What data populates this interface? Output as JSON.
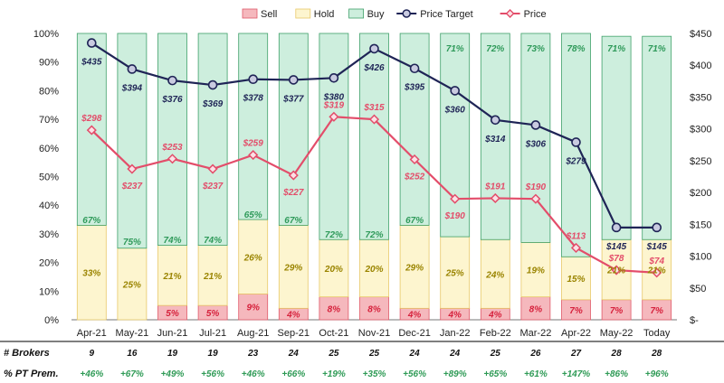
{
  "chart_data": {
    "type": "bar",
    "categories": [
      "Apr-21",
      "May-21",
      "Jun-21",
      "Jul-21",
      "Aug-21",
      "Sep-21",
      "Oct-21",
      "Nov-21",
      "Dec-21",
      "Jan-22",
      "Feb-22",
      "Mar-22",
      "Apr-22",
      "May-22",
      "Today"
    ],
    "series": [
      {
        "name": "Sell",
        "type": "stacked-bar",
        "color": "#f5b8bd",
        "edge": "#e05a6a",
        "label_color": "#d6213c",
        "values": [
          0,
          0,
          5,
          5,
          9,
          4,
          8,
          8,
          4,
          4,
          4,
          8,
          7,
          7,
          7
        ],
        "labels": [
          "",
          "",
          "5%",
          "5%",
          "9%",
          "4%",
          "8%",
          "8%",
          "4%",
          "4%",
          "4%",
          "8%",
          "7%",
          "7%",
          "7%"
        ]
      },
      {
        "name": "Hold",
        "type": "stacked-bar",
        "color": "#fdf5cf",
        "edge": "#e8c96a",
        "label_color": "#9a8400",
        "values": [
          33,
          25,
          21,
          21,
          26,
          29,
          20,
          20,
          29,
          25,
          24,
          19,
          15,
          21,
          21
        ],
        "labels": [
          "33%",
          "25%",
          "21%",
          "21%",
          "26%",
          "29%",
          "20%",
          "20%",
          "29%",
          "25%",
          "24%",
          "19%",
          "15%",
          "21%",
          "21%"
        ]
      },
      {
        "name": "Buy",
        "type": "stacked-bar",
        "color": "#cdeedd",
        "edge": "#3fa06a",
        "label_color": "#2f9a5a",
        "values": [
          67,
          75,
          74,
          74,
          65,
          67,
          72,
          72,
          67,
          71,
          72,
          73,
          78,
          71,
          71
        ],
        "labels": [
          "67%",
          "75%",
          "74%",
          "74%",
          "65%",
          "67%",
          "72%",
          "72%",
          "67%",
          "71%",
          "72%",
          "73%",
          "78%",
          "71%",
          "71%"
        ]
      },
      {
        "name": "Price Target",
        "type": "line",
        "axis": "right",
        "color": "#1f2456",
        "values": [
          435,
          394,
          376,
          369,
          378,
          377,
          380,
          426,
          395,
          360,
          314,
          306,
          279,
          145,
          145
        ],
        "labels": [
          "$435",
          "$394",
          "$376",
          "$369",
          "$378",
          "$377",
          "$380",
          "$426",
          "$395",
          "$360",
          "$314",
          "$306",
          "$279",
          "$145",
          "$145"
        ]
      },
      {
        "name": "Price",
        "type": "line",
        "axis": "right",
        "color": "#e34d6a",
        "values": [
          298,
          237,
          253,
          237,
          259,
          227,
          319,
          315,
          252,
          190,
          191,
          190,
          113,
          78,
          74
        ],
        "labels": [
          "$298",
          "$237",
          "$253",
          "$237",
          "$259",
          "$227",
          "$319",
          "$315",
          "$252",
          "$190",
          "$191",
          "$190",
          "$113",
          "$78",
          "$74"
        ]
      }
    ],
    "y_left": {
      "ylim": [
        0,
        100
      ],
      "ticks": [
        "0%",
        "10%",
        "20%",
        "30%",
        "40%",
        "50%",
        "60%",
        "70%",
        "80%",
        "90%",
        "100%"
      ]
    },
    "y_right": {
      "ylim": [
        0,
        450
      ],
      "ticks": [
        "$-",
        "$50",
        "$100",
        "$150",
        "$200",
        "$250",
        "$300",
        "$350",
        "$400",
        "$450"
      ]
    },
    "legend": {
      "position": "top-center",
      "items": [
        "Sell",
        "Hold",
        "Buy",
        "Price Target",
        "Price"
      ]
    },
    "table_rows": [
      {
        "label": "# Brokers",
        "color": "#111111",
        "values": [
          "9",
          "16",
          "19",
          "19",
          "23",
          "24",
          "25",
          "25",
          "24",
          "24",
          "25",
          "26",
          "27",
          "28",
          "28"
        ]
      },
      {
        "label": "% PT Prem.",
        "color": "#2e9a55",
        "values": [
          "+46%",
          "+67%",
          "+49%",
          "+56%",
          "+46%",
          "+66%",
          "+19%",
          "+35%",
          "+56%",
          "+89%",
          "+65%",
          "+61%",
          "+147%",
          "+86%",
          "+96%"
        ]
      }
    ]
  }
}
